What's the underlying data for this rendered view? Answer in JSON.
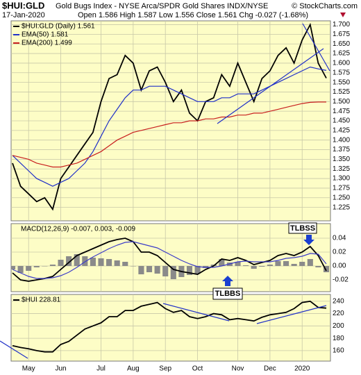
{
  "header": {
    "symbol": "$HUI:GLD",
    "description": "Gold Bugs Index - NYSE Arca/SPDR Gold Shares INDX/NYSE",
    "copyright": "© StockCharts.com",
    "date": "17-Jan-2020",
    "quote": "Open 1.586 High 1.587 Low 1.556 Close 1.561 Chg -0.027 (-1.68%)"
  },
  "annotations": [
    "TLBSS",
    "TLBBS"
  ],
  "chart_data": [
    {
      "type": "line",
      "grid": true,
      "ylim": [
        1.19,
        1.71
      ],
      "yticks": [
        {
          "value": 1.225,
          "label": "1.225"
        },
        {
          "value": 1.25,
          "label": "1.250"
        },
        {
          "value": 1.275,
          "label": "1.275"
        },
        {
          "value": 1.3,
          "label": "1.300"
        },
        {
          "value": 1.325,
          "label": "1.325"
        },
        {
          "value": 1.35,
          "label": "1.350"
        },
        {
          "value": 1.375,
          "label": "1.375"
        },
        {
          "value": 1.4,
          "label": "1.400"
        },
        {
          "value": 1.425,
          "label": "1.425"
        },
        {
          "value": 1.45,
          "label": "1.450"
        },
        {
          "value": 1.475,
          "label": "1.475"
        },
        {
          "value": 1.5,
          "label": "1.500"
        },
        {
          "value": 1.525,
          "label": "1.525"
        },
        {
          "value": 1.55,
          "label": "1.550"
        },
        {
          "value": 1.575,
          "label": "1.575"
        },
        {
          "value": 1.6,
          "label": "1.600"
        },
        {
          "value": 1.625,
          "label": "1.625"
        },
        {
          "value": 1.65,
          "label": "1.650"
        },
        {
          "value": 1.675,
          "label": "1.675"
        },
        {
          "value": 1.7,
          "label": "1.700"
        }
      ],
      "series": [
        {
          "name": "$HUI:GLD (Daily) 1.561",
          "color": "#000000",
          "values": [
            1.34,
            1.28,
            1.26,
            1.24,
            1.25,
            1.22,
            1.3,
            1.33,
            1.36,
            1.39,
            1.42,
            1.5,
            1.56,
            1.57,
            1.62,
            1.6,
            1.53,
            1.58,
            1.59,
            1.55,
            1.5,
            1.53,
            1.47,
            1.45,
            1.5,
            1.51,
            1.57,
            1.54,
            1.6,
            1.55,
            1.5,
            1.56,
            1.58,
            1.62,
            1.64,
            1.6,
            1.66,
            1.7,
            1.6,
            1.561
          ]
        },
        {
          "name": "EMA(50) 1.581",
          "color": "#1f2fc8",
          "values": [
            1.36,
            1.34,
            1.32,
            1.3,
            1.29,
            1.28,
            1.29,
            1.3,
            1.32,
            1.34,
            1.37,
            1.41,
            1.45,
            1.48,
            1.51,
            1.53,
            1.53,
            1.54,
            1.54,
            1.54,
            1.53,
            1.52,
            1.51,
            1.5,
            1.5,
            1.5,
            1.51,
            1.51,
            1.52,
            1.52,
            1.52,
            1.53,
            1.54,
            1.55,
            1.56,
            1.57,
            1.58,
            1.59,
            1.585,
            1.581
          ]
        },
        {
          "name": "EMA(200) 1.499",
          "color": "#c81e1e",
          "values": [
            1.36,
            1.355,
            1.35,
            1.34,
            1.335,
            1.33,
            1.33,
            1.335,
            1.34,
            1.35,
            1.36,
            1.37,
            1.385,
            1.4,
            1.41,
            1.42,
            1.425,
            1.43,
            1.435,
            1.44,
            1.445,
            1.445,
            1.45,
            1.45,
            1.455,
            1.455,
            1.46,
            1.46,
            1.465,
            1.465,
            1.47,
            1.47,
            1.475,
            1.48,
            1.485,
            1.49,
            1.495,
            1.498,
            1.499,
            1.499
          ]
        }
      ]
    },
    {
      "type": "line",
      "grid": true,
      "title": "MACD(12,26,9) -0.007, 0.003, -0.009",
      "ylim": [
        -0.037,
        0.061
      ],
      "yticks": [
        -0.02,
        {
          "value": 0,
          "label": "0.00"
        },
        0.02,
        0.04
      ],
      "series": [
        {
          "type": "bar",
          "color": "#8a8a8a",
          "values": [
            -0.005,
            -0.01,
            -0.007,
            -0.002,
            0.0,
            0.002,
            0.009,
            0.014,
            0.017,
            0.014,
            0.012,
            0.011,
            0.01,
            0.008,
            0.006,
            0.0,
            -0.012,
            -0.009,
            -0.011,
            -0.015,
            -0.019,
            -0.016,
            -0.013,
            -0.011,
            -0.003,
            0.002,
            0.01,
            0.005,
            0.006,
            0.001,
            -0.004,
            -0.001,
            0.002,
            0.007,
            0.007,
            0.003,
            0.006,
            0.01,
            -0.002,
            -0.009
          ]
        },
        {
          "color": "#000000",
          "values": [
            -0.01,
            -0.02,
            -0.022,
            -0.02,
            -0.018,
            -0.015,
            -0.005,
            0.005,
            0.015,
            0.02,
            0.025,
            0.03,
            0.035,
            0.038,
            0.04,
            0.035,
            0.02,
            0.02,
            0.015,
            0.005,
            -0.005,
            -0.008,
            -0.01,
            -0.012,
            -0.005,
            0.0,
            0.01,
            0.008,
            0.012,
            0.008,
            0.002,
            0.005,
            0.008,
            0.015,
            0.018,
            0.015,
            0.02,
            0.028,
            0.015,
            -0.007
          ]
        },
        {
          "color": "#3c3cc8",
          "values": [
            -0.005,
            -0.01,
            -0.015,
            -0.018,
            -0.018,
            -0.017,
            -0.014,
            -0.009,
            -0.002,
            0.006,
            0.013,
            0.019,
            0.025,
            0.03,
            0.034,
            0.035,
            0.032,
            0.029,
            0.026,
            0.02,
            0.014,
            0.008,
            0.003,
            -0.001,
            -0.002,
            -0.002,
            0.0,
            0.003,
            0.006,
            0.007,
            0.006,
            0.006,
            0.006,
            0.008,
            0.011,
            0.012,
            0.014,
            0.018,
            0.017,
            0.003
          ]
        }
      ]
    },
    {
      "type": "line",
      "grid": true,
      "categories": [
        null,
        null,
        "May",
        null,
        null,
        null,
        "Jun",
        null,
        null,
        null,
        null,
        "Jul",
        null,
        null,
        null,
        "Aug",
        null,
        null,
        null,
        "Sep",
        null,
        null,
        null,
        "Oct",
        null,
        null,
        null,
        null,
        "Nov",
        null,
        null,
        null,
        "Dec",
        null,
        null,
        null,
        "2020",
        null,
        null,
        null
      ],
      "ylim": [
        143,
        251
      ],
      "yticks": [
        160,
        180,
        200,
        220,
        240
      ],
      "series": [
        {
          "name": "$HUI 228.81",
          "color": "#000000",
          "values": [
            168,
            165,
            163,
            160,
            158,
            158,
            170,
            175,
            185,
            195,
            200,
            205,
            215,
            215,
            225,
            225,
            232,
            235,
            238,
            228,
            222,
            225,
            215,
            212,
            215,
            220,
            218,
            210,
            212,
            210,
            208,
            214,
            218,
            220,
            222,
            228,
            238,
            240,
            230,
            228.81
          ]
        }
      ]
    }
  ]
}
